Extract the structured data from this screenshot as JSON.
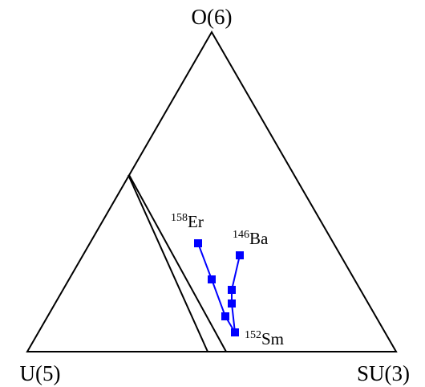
{
  "vertices": {
    "top": "O(6)",
    "left": "U(5)",
    "right": "SU(3)"
  },
  "nuclei": [
    {
      "mass": "158",
      "element": "Er"
    },
    {
      "mass": "146",
      "element": "Ba"
    },
    {
      "mass": "152",
      "element": "Sm"
    }
  ],
  "colors": {
    "series": "#0000ff",
    "outline": "#000000"
  },
  "series_shape": "filled-square"
}
